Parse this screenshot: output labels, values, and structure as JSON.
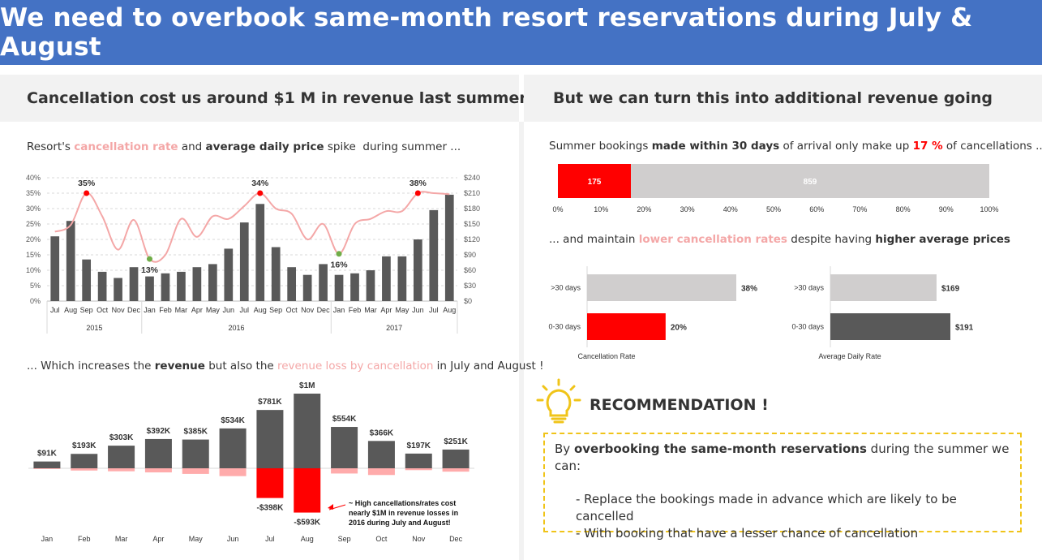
{
  "title": "We need to overbook same-month resort reservations during July & August",
  "left_header": {
    "prefix": "Cancellation cost us around ",
    "highlight": "$1 M",
    "suffix": " in revenue last summer"
  },
  "right_header": {
    "prefix": "But we can turn this into ",
    "highlight": "additional revenue",
    "suffix": " going"
  },
  "caption1": {
    "a": "Resort's ",
    "b": "cancellation rate",
    "c": " and ",
    "d": "average daily price",
    "e": " spike  during summer ..."
  },
  "caption2": {
    "a": "... Which increases the ",
    "b": "revenue",
    "c": " but also the ",
    "d": "revenue loss by cancellation",
    "e": " in July and August !"
  },
  "caption3": {
    "a": "Summer bookings ",
    "b": "made within 30 days",
    "c": " of arrival only make up ",
    "d": "17 %",
    "e": " of cancellations ..."
  },
  "caption4": {
    "a": "... and maintain ",
    "b": "lower cancellation rates",
    "c": " despite having ",
    "d": "higher average prices"
  },
  "colors": {
    "banner": "#4472c4",
    "bar_dark": "#595959",
    "line_pink": "#f4a7a7",
    "red": "#ff0000",
    "green": "#70ad47",
    "grey": "#d0cece",
    "gold": "#f0c419"
  },
  "chart_data": [
    {
      "type": "bar",
      "months": [
        "Jul",
        "Aug",
        "Sep",
        "Oct",
        "Nov",
        "Dec",
        "Jan",
        "Feb",
        "Mar",
        "Apr",
        "May",
        "Jun",
        "Jul",
        "Aug",
        "Sep",
        "Oct",
        "Nov",
        "Dec",
        "Jan",
        "Feb",
        "Mar",
        "Apr",
        "May",
        "Jun",
        "Jul",
        "Aug"
      ],
      "years": [
        {
          "label": "2015",
          "count": 6
        },
        {
          "label": "2016",
          "count": 12
        },
        {
          "label": "2017",
          "count": 8
        }
      ],
      "bars_cancellation_rate": [
        0.21,
        0.26,
        0.135,
        0.095,
        0.075,
        0.11,
        0.08,
        0.09,
        0.095,
        0.11,
        0.12,
        0.17,
        0.255,
        0.315,
        0.175,
        0.11,
        0.085,
        0.12,
        0.085,
        0.09,
        0.1,
        0.145,
        0.145,
        0.2,
        0.295,
        0.345
      ],
      "line_avg_daily_price": [
        135,
        148,
        210,
        165,
        100,
        158,
        82,
        90,
        160,
        125,
        165,
        160,
        185,
        210,
        180,
        170,
        120,
        150,
        92,
        150,
        160,
        175,
        175,
        210,
        210,
        208
      ],
      "highlight_points": [
        {
          "index": 2,
          "label": "35%",
          "color": "red"
        },
        {
          "index": 6,
          "label": "13%",
          "color": "green"
        },
        {
          "index": 13,
          "label": "34%",
          "color": "red"
        },
        {
          "index": 18,
          "label": "16%",
          "color": "green"
        },
        {
          "index": 23,
          "label": "38%",
          "color": "red"
        }
      ],
      "left_axis": {
        "ticks": [
          "0%",
          "5%",
          "10%",
          "15%",
          "20%",
          "25%",
          "30%",
          "35%",
          "40%"
        ],
        "max": 0.4
      },
      "right_axis": {
        "ticks": [
          "$0",
          "$30",
          "$60",
          "$90",
          "$120",
          "$150",
          "$180",
          "$210",
          "$240"
        ],
        "max": 240
      }
    },
    {
      "type": "bar",
      "categories": [
        "Jan",
        "Feb",
        "Mar",
        "Apr",
        "May",
        "Jun",
        "Jul",
        "Aug",
        "Sep",
        "Oct",
        "Nov",
        "Dec"
      ],
      "revenue_k": [
        91,
        193,
        303,
        392,
        385,
        534,
        781,
        1000,
        554,
        366,
        197,
        251
      ],
      "revenue_labels": [
        "$91K",
        "$193K",
        "$303K",
        "$392K",
        "$385K",
        "$534K",
        "$781K",
        "$1M",
        "$554K",
        "$366K",
        "$197K",
        "$251K"
      ],
      "loss_k": [
        -10,
        -30,
        -40,
        -55,
        -75,
        -105,
        -398,
        -593,
        -70,
        -90,
        -25,
        -45
      ],
      "loss_labels": {
        "6": "-$398K",
        "7": "-$593K"
      },
      "annotation": [
        "~ High cancellations/rates cost",
        "nearly $1M  in revenue losses in",
        "2016 during July and August!"
      ]
    },
    {
      "type": "bar",
      "segments": [
        {
          "name": "0-30 days",
          "value": 175
        },
        {
          "name": ">30 days",
          "value": 859
        }
      ],
      "xticks": [
        "0%",
        "10%",
        "20%",
        "30%",
        "40%",
        "50%",
        "60%",
        "70%",
        "80%",
        "90%",
        "100%"
      ]
    },
    {
      "type": "bar",
      "xlabel": "Cancellation Rate",
      "categories": [
        ">30 days",
        "0-30 days"
      ],
      "values": [
        0.38,
        0.2
      ],
      "labels": [
        "38%",
        "20%"
      ]
    },
    {
      "type": "bar",
      "xlabel": "Average Daily Rate",
      "categories": [
        ">30 days",
        "0-30 days"
      ],
      "values": [
        169,
        191
      ],
      "labels": [
        "$169",
        "$191"
      ]
    }
  ],
  "recommendation": {
    "title": "RECOMMENDATION !",
    "line1_prefix": " By ",
    "line1_bold": "overbooking the same-month reservations",
    "line1_suffix": " during the summer we can:",
    "bullets": [
      "- Replace the bookings made in advance which are likely to be cancelled",
      "- With booking that have a lesser chance of cancellation"
    ]
  }
}
